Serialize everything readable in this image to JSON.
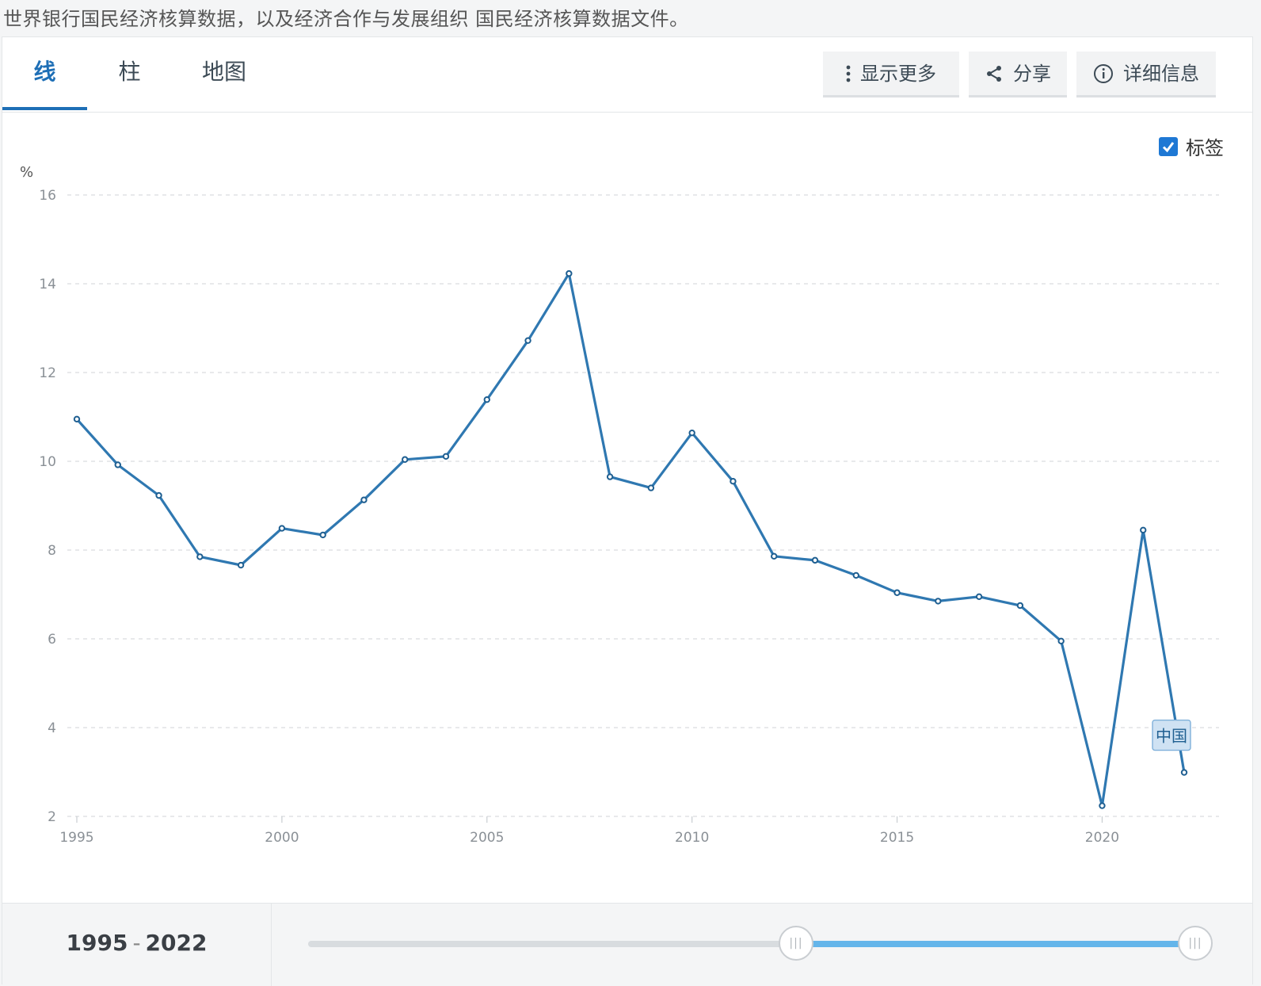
{
  "source_text": "世界银行国民经济核算数据，以及经济合作与发展组织 国民经济核算数据文件。",
  "tabs": [
    {
      "label": "线",
      "active": true
    },
    {
      "label": "柱",
      "active": false
    },
    {
      "label": "地图",
      "active": false
    }
  ],
  "toolbar": {
    "more_label": "显示更多",
    "share_label": "分享",
    "details_label": "详细信息"
  },
  "labels_toggle": {
    "label": "标签",
    "checked": true
  },
  "colors": {
    "accent": "#1e6fb6",
    "line": "#2f78b1",
    "slider_fill": "#64b5ea"
  },
  "chart_data": {
    "type": "line",
    "ylabel": "%",
    "ylim": [
      2,
      16
    ],
    "yticks": [
      2,
      4,
      6,
      8,
      10,
      12,
      14,
      16
    ],
    "xlim": [
      1995,
      2022
    ],
    "xticks": [
      1995,
      2000,
      2005,
      2010,
      2015,
      2020
    ],
    "grid": true,
    "x": [
      1995,
      1996,
      1997,
      1998,
      1999,
      2000,
      2001,
      2002,
      2003,
      2004,
      2005,
      2006,
      2007,
      2008,
      2009,
      2010,
      2011,
      2012,
      2013,
      2014,
      2015,
      2016,
      2017,
      2018,
      2019,
      2020,
      2021,
      2022
    ],
    "series": [
      {
        "name": "中国",
        "values": [
          10.95,
          9.92,
          9.23,
          7.85,
          7.66,
          8.49,
          8.34,
          9.13,
          10.04,
          10.11,
          11.39,
          12.72,
          14.23,
          9.65,
          9.4,
          10.64,
          9.55,
          7.86,
          7.77,
          7.43,
          7.04,
          6.85,
          6.95,
          6.75,
          5.95,
          2.24,
          8.45,
          2.99
        ]
      }
    ]
  },
  "range_slider": {
    "start": "1995",
    "end": "2022",
    "separator": "-",
    "fill_from": 0.55,
    "fill_to": 1.0
  }
}
